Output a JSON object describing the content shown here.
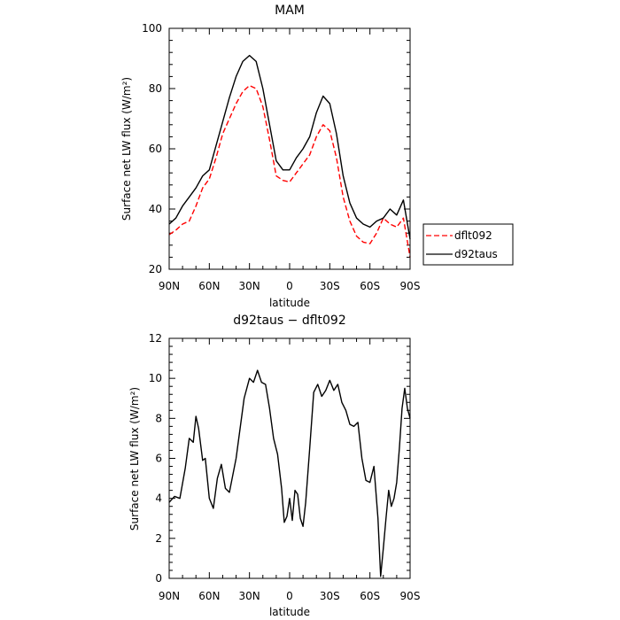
{
  "chart_data": [
    {
      "type": "line",
      "title": "MAM",
      "xlabel": "latitude",
      "ylabel": "Surface net LW flux (W/m²)",
      "ylim": [
        20,
        100
      ],
      "y_ticks": [
        "20",
        "40",
        "60",
        "80",
        "100"
      ],
      "x_ticks": [
        "90N",
        "60N",
        "30N",
        "0",
        "30S",
        "60S",
        "90S"
      ],
      "x": [
        -90,
        -85,
        -80,
        -75,
        -70,
        -65,
        -60,
        -55,
        -50,
        -45,
        -40,
        -35,
        -30,
        -25,
        -20,
        -15,
        -10,
        -5,
        0,
        5,
        10,
        15,
        20,
        25,
        30,
        35,
        40,
        45,
        50,
        55,
        60,
        65,
        70,
        75,
        80,
        85,
        90
      ],
      "legend": {
        "position": "right",
        "entries": [
          "dflt092",
          "d92taus"
        ]
      },
      "series": [
        {
          "name": "dflt092",
          "color": "#ff0000",
          "dash": "dashed",
          "values": [
            31.5,
            33,
            35,
            36,
            41,
            47,
            50,
            57,
            65,
            70,
            75,
            79,
            81,
            80,
            74,
            63,
            51,
            49.5,
            49,
            52,
            55,
            58,
            64,
            68,
            66,
            57,
            44,
            36,
            31,
            29,
            28.5,
            32,
            37,
            35,
            34,
            37,
            24
          ]
        },
        {
          "name": "d92taus",
          "color": "#000000",
          "dash": "solid",
          "values": [
            35,
            37,
            41,
            44,
            47,
            51,
            53,
            61,
            69,
            77,
            84,
            89,
            91,
            89,
            80,
            68,
            56,
            53,
            53,
            57,
            60,
            64,
            72,
            77.5,
            75,
            65,
            51,
            42,
            37,
            35,
            34,
            36,
            37,
            40,
            38,
            43,
            30
          ]
        }
      ]
    },
    {
      "type": "line",
      "title": "d92taus − dflt092",
      "xlabel": "latitude",
      "ylabel": "Surface net LW flux (W/m²)",
      "ylim": [
        0,
        12
      ],
      "y_ticks": [
        "0",
        "2",
        "4",
        "6",
        "8",
        "10",
        "12"
      ],
      "x_ticks": [
        "90N",
        "60N",
        "30N",
        "0",
        "30S",
        "60S",
        "90S"
      ],
      "x": [
        -90,
        -86,
        -82,
        -78,
        -75,
        -72,
        -70,
        -68,
        -65,
        -63,
        -60,
        -57,
        -54,
        -51,
        -48,
        -45,
        -40,
        -37,
        -34,
        -30,
        -27,
        -24,
        -21,
        -18,
        -15,
        -12,
        -9,
        -6,
        -4,
        -2,
        0,
        2,
        4,
        6,
        8,
        10,
        12,
        15,
        18,
        21,
        24,
        27,
        30,
        33,
        36,
        39,
        42,
        45,
        48,
        51,
        54,
        57,
        60,
        63,
        66,
        68,
        70,
        72,
        74,
        76,
        78,
        80,
        82,
        84,
        86,
        88,
        90
      ],
      "series": [
        {
          "name": "",
          "color": "#000000",
          "dash": "solid",
          "values": [
            3.8,
            4.1,
            4.0,
            5.5,
            7.0,
            6.8,
            8.1,
            7.5,
            5.9,
            6.0,
            4.0,
            3.5,
            5.0,
            5.7,
            4.5,
            4.3,
            6.0,
            7.5,
            9.0,
            10.0,
            9.8,
            10.4,
            9.8,
            9.7,
            8.5,
            7.0,
            6.2,
            4.5,
            2.8,
            3.1,
            4.0,
            2.9,
            4.4,
            4.2,
            3.0,
            2.6,
            3.8,
            6.5,
            9.3,
            9.7,
            9.1,
            9.4,
            9.9,
            9.4,
            9.7,
            8.8,
            8.4,
            7.7,
            7.6,
            7.8,
            6.0,
            4.9,
            4.8,
            5.6,
            3.0,
            0.1,
            1.5,
            3.0,
            4.4,
            3.6,
            4.0,
            4.8,
            6.5,
            8.5,
            9.5,
            8.5,
            8.0
          ]
        }
      ]
    }
  ]
}
